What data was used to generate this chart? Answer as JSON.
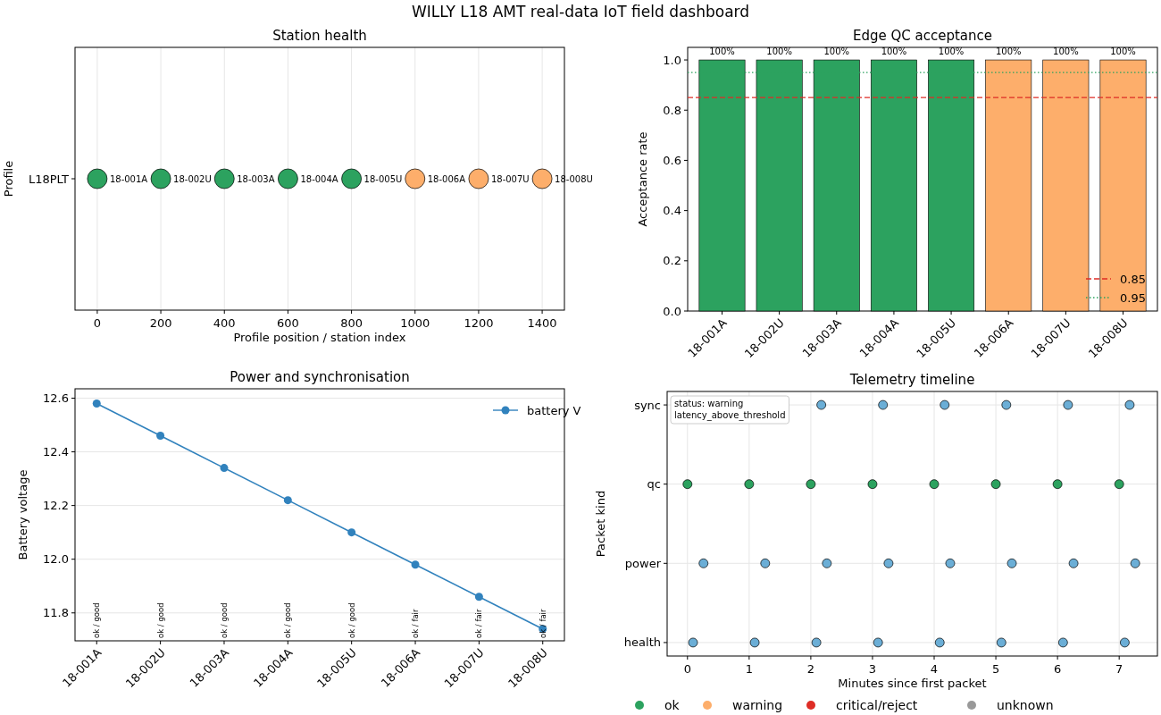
{
  "chart_data": [
    {
      "type": "other",
      "title": "WILLY L18 AMT real-data IoT field dashboard",
      "legend": "bottom",
      "series": [
        {
          "name": "ok",
          "color": "#2ca25f"
        },
        {
          "name": "warning",
          "color": "#fdae6b"
        },
        {
          "name": "critical/reject",
          "color": "#de2d26"
        },
        {
          "name": "unknown",
          "color": "#999999"
        }
      ]
    },
    {
      "type": "scatter",
      "orientation": "horizontal",
      "title": "Station health",
      "xlabel": "Profile position / station index",
      "ylabel": "Profile",
      "categories": [
        "L18PLT"
      ],
      "xlim": [
        -70,
        1470
      ],
      "xticks": [
        0,
        200,
        400,
        600,
        800,
        1000,
        1200,
        1400
      ],
      "grid": "x",
      "marker": "circle",
      "series": [
        {
          "values": [
            0
          ],
          "colors": [
            "#2ca25f"
          ],
          "value_labels": [
            "18-001A"
          ]
        },
        {
          "values": [
            200
          ],
          "colors": [
            "#2ca25f"
          ],
          "value_labels": [
            "18-002U"
          ]
        },
        {
          "values": [
            400
          ],
          "colors": [
            "#2ca25f"
          ],
          "value_labels": [
            "18-003A"
          ]
        },
        {
          "values": [
            600
          ],
          "colors": [
            "#2ca25f"
          ],
          "value_labels": [
            "18-004A"
          ]
        },
        {
          "values": [
            800
          ],
          "colors": [
            "#2ca25f"
          ],
          "value_labels": [
            "18-005U"
          ]
        },
        {
          "values": [
            1000
          ],
          "colors": [
            "#fdae6b"
          ],
          "value_labels": [
            "18-006A"
          ]
        },
        {
          "values": [
            1200
          ],
          "colors": [
            "#fdae6b"
          ],
          "value_labels": [
            "18-007U"
          ]
        },
        {
          "values": [
            1400
          ],
          "colors": [
            "#fdae6b"
          ],
          "value_labels": [
            "18-008U"
          ]
        }
      ]
    },
    {
      "type": "bar",
      "title": "Edge QC acceptance",
      "ylabel": "Acceptance rate",
      "categories": [
        "18-001A",
        "18-002U",
        "18-003A",
        "18-004A",
        "18-005U",
        "18-006A",
        "18-007U",
        "18-008U"
      ],
      "ylim": [
        0,
        1.05
      ],
      "yticks": [
        {
          "value": 0,
          "label": "0.0"
        },
        0.2,
        0.4,
        0.6,
        0.8,
        {
          "value": 1,
          "label": "1.0"
        }
      ],
      "legend": "bottom right",
      "series": [
        {
          "values": [
            1,
            1,
            1,
            1,
            1,
            1,
            1,
            1
          ],
          "colors": [
            "#2ca25f",
            "#2ca25f",
            "#2ca25f",
            "#2ca25f",
            "#2ca25f",
            "#fdae6b",
            "#fdae6b",
            "#fdae6b"
          ],
          "value_labels": [
            "100%",
            "100%",
            "100%",
            "100%",
            "100%",
            "100%",
            "100%",
            "100%"
          ]
        }
      ],
      "ref_lines": [
        {
          "axis": "y",
          "value": 0.85,
          "label": "0.85",
          "color": "#de2d26",
          "line_style": "dashed"
        },
        {
          "axis": "y",
          "value": 0.95,
          "label": "0.95",
          "color": "#2ca25f",
          "line_style": "dotted"
        }
      ]
    },
    {
      "type": "line",
      "title": "Power and synchronisation",
      "ylabel": "Battery voltage",
      "categories": [
        "18-001A",
        "18-002U",
        "18-003A",
        "18-004A",
        "18-005U",
        "18-006A",
        "18-007U",
        "18-008U"
      ],
      "ylim": [
        11.696,
        12.635
      ],
      "yticks": [
        11.8,
        {
          "value": 12,
          "label": "12.0"
        },
        12.2,
        12.4,
        12.6
      ],
      "grid": "y",
      "legend": "top right",
      "marker": "circle",
      "line_style": "solid",
      "series": [
        {
          "name": "battery V",
          "color": "#3182bd",
          "values": [
            12.58,
            12.46,
            12.34,
            12.22,
            12.1,
            11.98,
            11.86,
            11.74
          ]
        }
      ],
      "annotations": [
        "ok / good",
        "ok / good",
        "ok / good",
        "ok / good",
        "ok / good",
        "ok / fair",
        "ok / fair",
        "ok / fair"
      ]
    },
    {
      "type": "scatter",
      "orientation": "horizontal",
      "title": "Telemetry timeline",
      "xlabel": "Minutes since first packet",
      "ylabel": "Packet kind",
      "categories": [
        "sync",
        "qc",
        "power",
        "health"
      ],
      "xlim": [
        -0.33,
        7.62
      ],
      "xticks": [
        0,
        1,
        2,
        3,
        4,
        5,
        6,
        7
      ],
      "grid": true,
      "marker": "circle",
      "annotations": [
        "status: warning\nlatency_above_threshold"
      ],
      "series": [
        {
          "values": [
            null,
            0,
            0.26,
            0.09
          ],
          "colors": [
            null,
            "#2ca25f",
            "#6baed6",
            "#6baed6"
          ]
        },
        {
          "values": [
            null,
            1,
            1.26,
            1.09
          ],
          "colors": [
            null,
            "#2ca25f",
            "#6baed6",
            "#6baed6"
          ]
        },
        {
          "values": [
            2.17,
            2,
            2.26,
            2.09
          ],
          "colors": [
            "#6baed6",
            "#2ca25f",
            "#6baed6",
            "#6baed6"
          ]
        },
        {
          "values": [
            3.17,
            3,
            3.26,
            3.09
          ],
          "colors": [
            "#6baed6",
            "#2ca25f",
            "#6baed6",
            "#6baed6"
          ]
        },
        {
          "values": [
            4.17,
            4,
            4.26,
            4.09
          ],
          "colors": [
            "#6baed6",
            "#2ca25f",
            "#6baed6",
            "#6baed6"
          ]
        },
        {
          "values": [
            5.17,
            5,
            5.26,
            5.09
          ],
          "colors": [
            "#6baed6",
            "#2ca25f",
            "#6baed6",
            "#6baed6"
          ]
        },
        {
          "values": [
            6.17,
            6,
            6.26,
            6.09
          ],
          "colors": [
            "#6baed6",
            "#2ca25f",
            "#6baed6",
            "#6baed6"
          ]
        },
        {
          "values": [
            7.17,
            7,
            7.26,
            7.09
          ],
          "colors": [
            "#6baed6",
            "#2ca25f",
            "#6baed6",
            "#6baed6"
          ]
        }
      ]
    }
  ]
}
